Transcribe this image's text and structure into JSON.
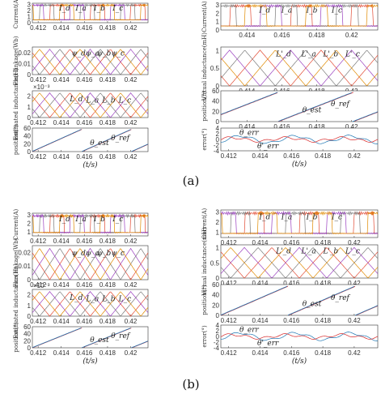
{
  "figure": {
    "captions": [
      "(a)",
      "(b)"
    ]
  },
  "colors": {
    "a": "#e24a33",
    "b": "#7a7a7a",
    "c": "#9a3fbf",
    "d": "#e08a00",
    "ref": "#d62728",
    "est": "#1f77b4",
    "err": "#1f77b4",
    "err2": "#d62728"
  },
  "chart_data": [
    {
      "id": "a_current_left",
      "type": "line",
      "ylabel": "Current(A)",
      "xticks": [
        "0.412",
        "0.414",
        "0.416",
        "0.418",
        "0.42"
      ],
      "yticks": [
        "3",
        "2",
        "1",
        "0"
      ],
      "xlim": [
        0.4115,
        0.4215
      ],
      "ylim": [
        0,
        3.2
      ],
      "annotations": [
        "I_d",
        "I_a",
        "I_b",
        "I_c"
      ],
      "kind": "current"
    },
    {
      "id": "a_flux_left",
      "type": "line",
      "ylabel": "Flux linkage(Wb)",
      "xticks": [
        "0.412",
        "0.414",
        "0.416",
        "0.418",
        "0.42"
      ],
      "yticks": [
        "0.02",
        "0.01",
        "0"
      ],
      "xlim": [
        0.4115,
        0.4215
      ],
      "ylim": [
        0,
        0.025
      ],
      "annotations": [
        "ψ_d",
        "ψ_a",
        "ψ_b",
        "ψ_c"
      ],
      "kind": "flux"
    },
    {
      "id": "a_ind_left",
      "type": "line",
      "ylabel": "Estimated inductance(H)",
      "multiplier": "×10⁻³",
      "xticks": [
        "0.412",
        "0.414",
        "0.416",
        "0.418",
        "0.42"
      ],
      "yticks": [
        "2",
        "1",
        "0"
      ],
      "xlim": [
        0.4115,
        0.4215
      ],
      "ylim": [
        0,
        2.5
      ],
      "annotations": [
        "L_d",
        "L_a",
        "L_b",
        "L_c"
      ],
      "kind": "ind"
    },
    {
      "id": "a_pos_left",
      "type": "line",
      "ylabel": "position(°)",
      "xticks": [
        "0.412",
        "0.414",
        "0.416",
        "0.418",
        "0.42"
      ],
      "yticks": [
        "60",
        "40",
        "20",
        "0"
      ],
      "xlim": [
        0.4115,
        0.4215
      ],
      "ylim": [
        0,
        60
      ],
      "annotations": [
        "θ_est",
        "θ_ref"
      ],
      "xlabel": "(t/s)",
      "kind": "pos"
    },
    {
      "id": "a_current_right",
      "type": "line",
      "ylabel": "Current(A)",
      "xticks": [
        "0.414",
        "0.416",
        "0.418",
        "0.42"
      ],
      "yticks": [
        "3",
        "2",
        "1",
        "0"
      ],
      "xlim": [
        0.4125,
        0.4215
      ],
      "ylim": [
        0,
        3.2
      ],
      "annotations": [
        "I_d",
        "I_a",
        "I_b",
        "I_c"
      ],
      "kind": "current"
    },
    {
      "id": "a_vind_right",
      "type": "line",
      "ylabel": "Virtual inductance(mH)",
      "xticks": [
        "0.414",
        "0.416",
        "0.418",
        "0.42"
      ],
      "yticks": [
        "1",
        "0.5",
        "0"
      ],
      "xlim": [
        0.4125,
        0.4215
      ],
      "ylim": [
        0,
        1.1
      ],
      "annotations": [
        "L'_d",
        "L'_a",
        "L'_b",
        "L'_c"
      ],
      "kind": "vind"
    },
    {
      "id": "a_pos_right",
      "type": "line",
      "ylabel": "position(°)",
      "xticks": [
        "0.414",
        "0.416",
        "0.418",
        "0.42"
      ],
      "yticks": [
        "60",
        "40",
        "20",
        "0"
      ],
      "xlim": [
        0.4125,
        0.4215
      ],
      "ylim": [
        0,
        60
      ],
      "annotations": [
        "θ_est",
        "θ_ref"
      ],
      "kind": "pos"
    },
    {
      "id": "a_err_right",
      "type": "line",
      "ylabel": "error(°)",
      "xticks": [
        "0.412",
        "0.414",
        "0.416",
        "0.418",
        "0.42"
      ],
      "yticks": [
        "4",
        "2",
        "0",
        "-2",
        "-4"
      ],
      "xlim": [
        0.4115,
        0.4215
      ],
      "ylim": [
        -4,
        4
      ],
      "annotations": [
        "θ_err",
        "θ'_err"
      ],
      "xlabel": "(t/s)",
      "kind": "err"
    },
    {
      "id": "b_current_left",
      "type": "line",
      "ylabel": "Current(A)",
      "xticks": [
        "0.412",
        "0.414",
        "0.416",
        "0.418",
        "0.42"
      ],
      "yticks": [
        "3",
        "2",
        "1"
      ],
      "xlim": [
        0.4115,
        0.4215
      ],
      "ylim": [
        0.5,
        3.2
      ],
      "annotations": [
        "I_d",
        "I_a",
        "I_b",
        "I_c"
      ],
      "kind": "current"
    },
    {
      "id": "b_flux_left",
      "type": "line",
      "ylabel": "Flux linkage(Wb)",
      "xticks": [
        "0.412",
        "0.414",
        "0.416",
        "0.418",
        "0.42"
      ],
      "yticks": [
        "0.02",
        "0.01",
        "0"
      ],
      "xlim": [
        0.4115,
        0.4215
      ],
      "ylim": [
        0,
        0.025
      ],
      "annotations": [
        "ψ_d",
        "ψ_a",
        "ψ_b",
        "ψ_c"
      ],
      "kind": "flux"
    },
    {
      "id": "b_ind_left",
      "type": "line",
      "ylabel": "Estimated inductance(H)",
      "multiplier": "×10⁻³",
      "xticks": [
        "0.412",
        "0.414",
        "0.416",
        "0.418",
        "0.42"
      ],
      "yticks": [
        "2",
        "1",
        "0"
      ],
      "xlim": [
        0.4115,
        0.4215
      ],
      "ylim": [
        0,
        2.5
      ],
      "annotations": [
        "L_d",
        "L_a",
        "L_b",
        "L_c"
      ],
      "kind": "ind"
    },
    {
      "id": "b_pos_left",
      "type": "line",
      "ylabel": "position(°)",
      "xticks": [
        "0.412",
        "0.414",
        "0.416",
        "0.418",
        "0.42"
      ],
      "yticks": [
        "60",
        "40",
        "20",
        "0"
      ],
      "xlim": [
        0.4115,
        0.4215
      ],
      "ylim": [
        0,
        60
      ],
      "annotations": [
        "θ_est",
        "θ_ref"
      ],
      "xlabel": "(t/s)",
      "kind": "pos"
    },
    {
      "id": "b_current_right",
      "type": "line",
      "ylabel": "Current(A)",
      "xticks": [
        "0.412",
        "0.414",
        "0.416",
        "0.418",
        "0.42"
      ],
      "yticks": [
        "3",
        "2",
        "1"
      ],
      "xlim": [
        0.4115,
        0.4215
      ],
      "ylim": [
        0.5,
        3.2
      ],
      "annotations": [
        "I_d",
        "I_a",
        "I_b",
        "I_c"
      ],
      "kind": "current"
    },
    {
      "id": "b_vind_right",
      "type": "line",
      "ylabel": "Virtual inductance(mH)",
      "xticks": [
        "0.412",
        "0.414",
        "0.416",
        "0.418",
        "0.42"
      ],
      "yticks": [
        "1",
        "0.5",
        "0"
      ],
      "xlim": [
        0.4115,
        0.4215
      ],
      "ylim": [
        0,
        1.1
      ],
      "annotations": [
        "L'_d",
        "L'_a",
        "L'_b",
        "L'_c"
      ],
      "kind": "vind"
    },
    {
      "id": "b_pos_right",
      "type": "line",
      "ylabel": "position(°)",
      "xticks": [
        "0.412",
        "0.414",
        "0.416",
        "0.418",
        "0.42"
      ],
      "yticks": [
        "60",
        "40",
        "20",
        "0"
      ],
      "xlim": [
        0.4115,
        0.4215
      ],
      "ylim": [
        0,
        60
      ],
      "annotations": [
        "θ_est",
        "θ_ref"
      ],
      "kind": "pos"
    },
    {
      "id": "b_err_right",
      "type": "line",
      "ylabel": "error(°)",
      "xticks": [
        "0.412",
        "0.414",
        "0.416",
        "0.418",
        "0.42"
      ],
      "yticks": [
        "4",
        "2",
        "0",
        "-2",
        "-4"
      ],
      "xlim": [
        0.4115,
        0.4215
      ],
      "ylim": [
        -4,
        4
      ],
      "annotations": [
        "θ_err",
        "θ'_err"
      ],
      "xlabel": "(t/s)",
      "kind": "err"
    }
  ]
}
